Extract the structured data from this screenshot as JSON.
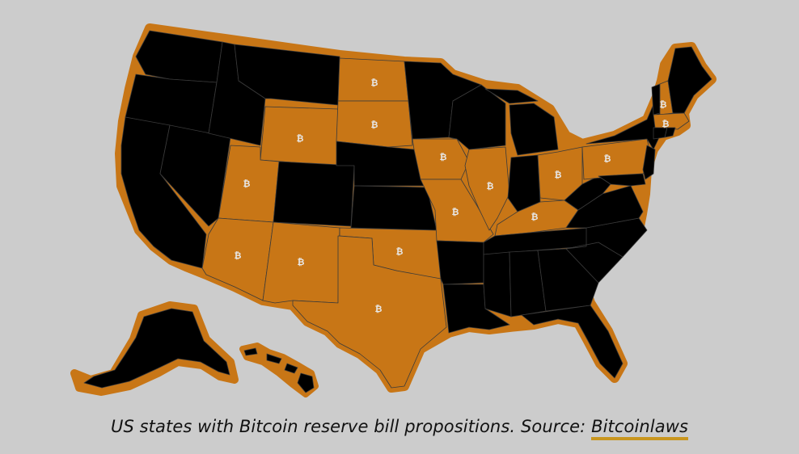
{
  "caption": {
    "text": "US states with Bitcoin reserve bill propositions. Source: ",
    "link_text": "Bitcoinlaws"
  },
  "map": {
    "colors": {
      "background": "#cccccc",
      "state_default": "#000000",
      "state_highlight": "#c87616",
      "outline": "#c87616",
      "marker": "#e8e8e8"
    },
    "marker_glyph": "₿",
    "highlighted_states": [
      "Arizona",
      "New Mexico",
      "Texas",
      "Utah",
      "Wyoming",
      "North Dakota",
      "South Dakota",
      "Iowa",
      "Oklahoma",
      "Missouri",
      "Illinois",
      "Kentucky",
      "Ohio",
      "Pennsylvania",
      "New Hampshire",
      "Massachusetts"
    ]
  }
}
